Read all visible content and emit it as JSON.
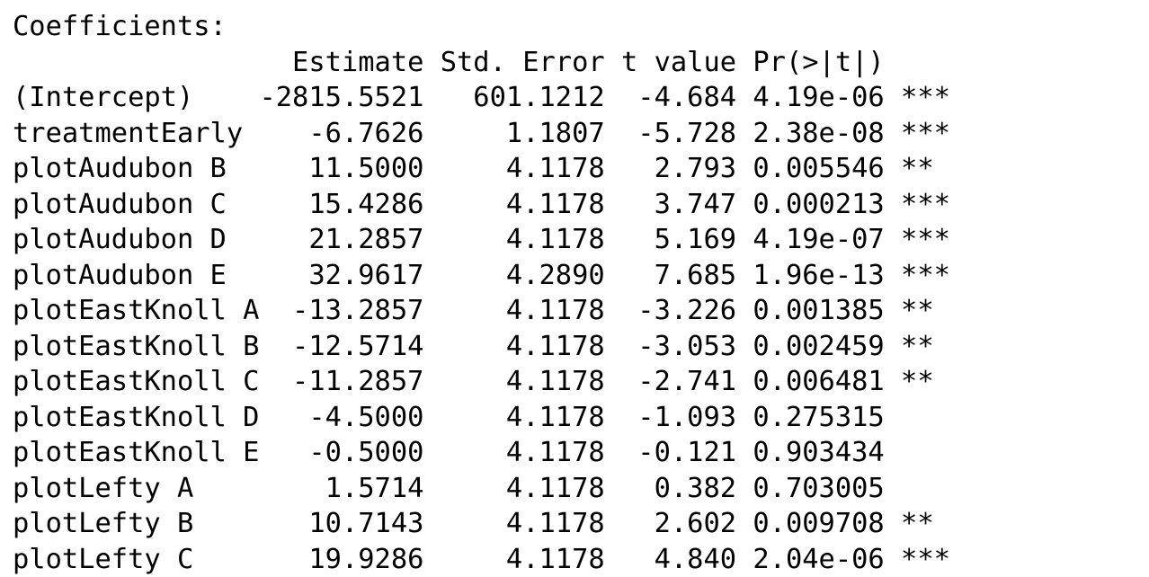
{
  "output": {
    "lines": [
      "Coefficients:",
      "                 Estimate Std. Error t value Pr(>|t|)    ",
      "(Intercept)    -2815.5521   601.1212  -4.684 4.19e-06 ***",
      "treatmentEarly    -6.7626     1.1807  -5.728 2.38e-08 ***",
      "plotAudubon B     11.5000     4.1178   2.793 0.005546 ** ",
      "plotAudubon C     15.4286     4.1178   3.747 0.000213 ***",
      "plotAudubon D     21.2857     4.1178   5.169 4.19e-07 ***",
      "plotAudubon E     32.9617     4.2890   7.685 1.96e-13 ***",
      "plotEastKnoll A  -13.2857     4.1178  -3.226 0.001385 ** ",
      "plotEastKnoll B  -12.5714     4.1178  -3.053 0.002459 ** ",
      "plotEastKnoll C  -11.2857     4.1178  -2.741 0.006481 ** ",
      "plotEastKnoll D   -4.5000     4.1178  -1.093 0.275315    ",
      "plotEastKnoll E   -0.5000     4.1178  -0.121 0.903434    ",
      "plotLefty A        1.5714     4.1178   0.382 0.703005    ",
      "plotLefty B       10.7143     4.1178   2.602 0.009708 ** ",
      "plotLefty C       19.9286     4.1178   4.840 2.04e-06 ***"
    ]
  }
}
